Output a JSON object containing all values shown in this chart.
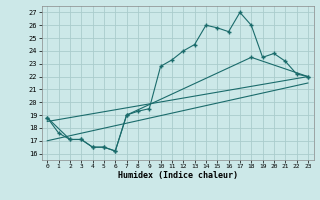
{
  "xlabel": "Humidex (Indice chaleur)",
  "bg_color": "#cce8e8",
  "grid_color": "#aacccc",
  "line_color": "#1a6b6b",
  "xlim": [
    -0.5,
    23.5
  ],
  "ylim": [
    15.5,
    27.5
  ],
  "xticks": [
    0,
    1,
    2,
    3,
    4,
    5,
    6,
    7,
    8,
    9,
    10,
    11,
    12,
    13,
    14,
    15,
    16,
    17,
    18,
    19,
    20,
    21,
    22,
    23
  ],
  "yticks": [
    16,
    17,
    18,
    19,
    20,
    21,
    22,
    23,
    24,
    25,
    26,
    27
  ],
  "line1_x": [
    0,
    1,
    2,
    3,
    4,
    5,
    6,
    7,
    8,
    9,
    10,
    11,
    12,
    13,
    14,
    15,
    16,
    17,
    18,
    19,
    20,
    21,
    22,
    23
  ],
  "line1_y": [
    18.8,
    17.6,
    17.1,
    17.1,
    16.5,
    16.5,
    16.2,
    19.0,
    19.3,
    19.5,
    22.8,
    23.3,
    24.0,
    24.5,
    26.0,
    25.8,
    25.5,
    27.0,
    26.0,
    23.5,
    23.8,
    23.2,
    22.2,
    22.0
  ],
  "line2_x": [
    0,
    2,
    3,
    4,
    5,
    6,
    7,
    18,
    23
  ],
  "line2_y": [
    18.8,
    17.1,
    17.1,
    16.5,
    16.5,
    16.2,
    19.0,
    23.5,
    22.0
  ],
  "line3_x": [
    0,
    23
  ],
  "line3_y": [
    18.5,
    22.0
  ],
  "line4_x": [
    0,
    23
  ],
  "line4_y": [
    17.0,
    21.5
  ]
}
